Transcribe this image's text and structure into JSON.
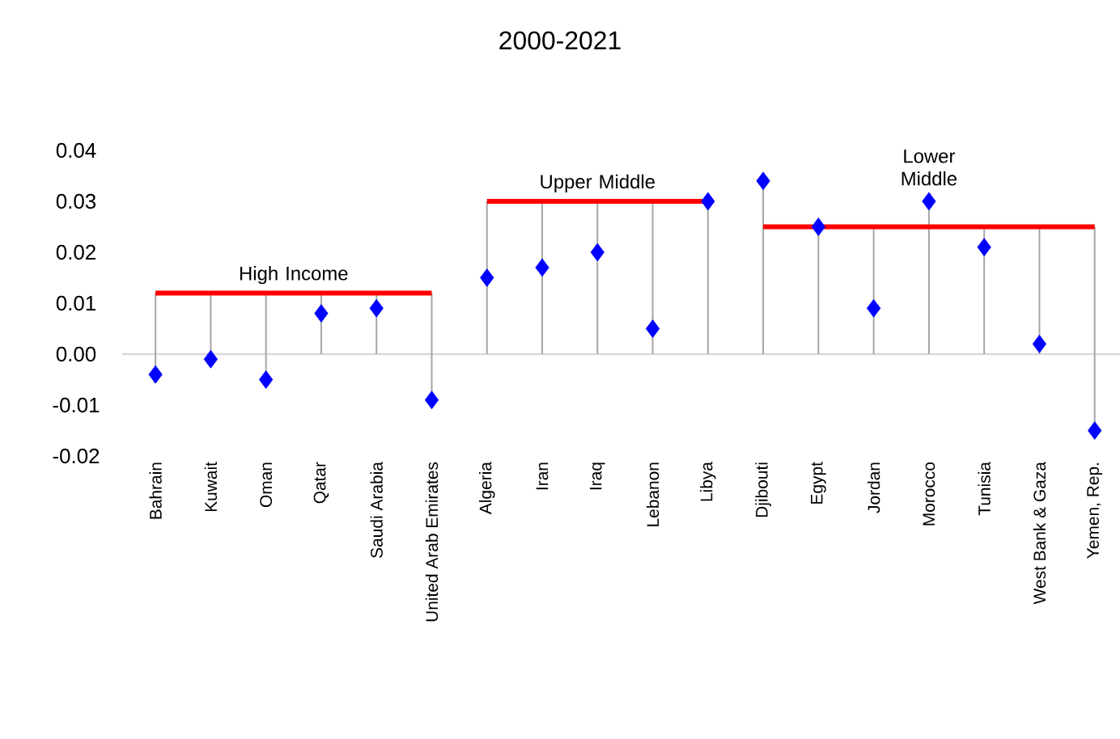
{
  "chart_data": {
    "type": "scatter",
    "title": "2000-2021",
    "categories": [
      "Bahrain",
      "Kuwait",
      "Oman",
      "Qatar",
      "Saudi Arabia",
      "United Arab Emirates",
      "Algeria",
      "Iran",
      "Iraq",
      "Lebanon",
      "Libya",
      "Djibouti",
      "Egypt",
      "Jordan",
      "Morocco",
      "Tunisia",
      "West Bank & Gaza",
      "Yemen, Rep."
    ],
    "series": [
      {
        "type": "line",
        "color": "#ff0000",
        "marker": "none",
        "values": [
          0.012,
          0.012,
          0.012,
          0.012,
          0.012,
          0.012,
          null,
          null,
          null,
          null,
          null,
          null,
          null,
          null,
          null,
          null,
          null,
          null
        ]
      },
      {
        "type": "line",
        "color": "#ff0000",
        "marker": "none",
        "values": [
          null,
          null,
          null,
          null,
          null,
          null,
          0.03,
          0.03,
          0.03,
          0.03,
          0.03,
          null,
          null,
          null,
          null,
          null,
          null,
          null
        ]
      },
      {
        "type": "line",
        "color": "#ff0000",
        "marker": "none",
        "values": [
          null,
          null,
          null,
          null,
          null,
          null,
          null,
          null,
          null,
          null,
          null,
          0.025,
          0.025,
          0.025,
          0.025,
          0.025,
          0.025,
          0.025
        ]
      },
      {
        "color": "#0000ff",
        "marker": "diamond",
        "values": [
          -0.004,
          -0.001,
          -0.005,
          0.008,
          0.009,
          -0.009,
          0.015,
          0.017,
          0.02,
          0.005,
          0.03,
          0.034,
          0.025,
          0.009,
          0.03,
          0.021,
          0.002,
          -0.015
        ],
        "errors": [
          [
            -0.004,
            0.012
          ],
          [
            -0.001,
            0.012
          ],
          [
            -0.005,
            0.012
          ],
          [
            0,
            0.012
          ],
          [
            0,
            0.012
          ],
          [
            -0.009,
            0.012
          ],
          [
            0,
            0.03
          ],
          [
            0,
            0.03
          ],
          [
            0,
            0.03
          ],
          [
            0,
            0.03
          ],
          [
            0,
            0.03
          ],
          [
            0,
            0.034
          ],
          [
            0,
            0.025
          ],
          [
            0,
            0.025
          ],
          [
            0,
            0.03
          ],
          [
            0,
            0.025
          ],
          [
            0,
            0.025
          ],
          [
            -0.015,
            0.025
          ]
        ]
      }
    ],
    "ylim": [
      -0.02,
      0.04
    ],
    "yticks": [
      -0.02,
      -0.01,
      {
        "value": 0,
        "label": "0.00"
      },
      0.01,
      0.02,
      0.03,
      0.04
    ],
    "ref_lines": [
      {
        "axis": "y",
        "value": 0,
        "color": "#d9d9d9"
      }
    ],
    "annotations": [
      "High Income",
      "Upper Middle",
      "Lower Middle"
    ],
    "grid": false,
    "legend": false
  }
}
